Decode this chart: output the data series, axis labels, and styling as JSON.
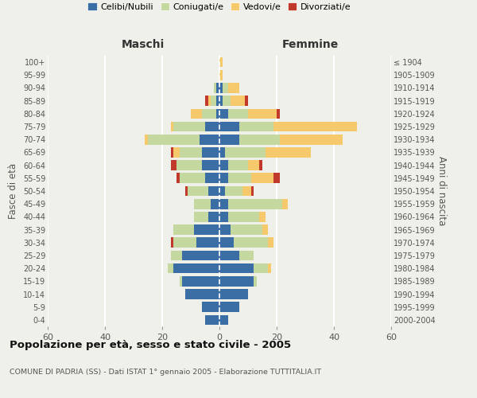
{
  "age_groups": [
    "0-4",
    "5-9",
    "10-14",
    "15-19",
    "20-24",
    "25-29",
    "30-34",
    "35-39",
    "40-44",
    "45-49",
    "50-54",
    "55-59",
    "60-64",
    "65-69",
    "70-74",
    "75-79",
    "80-84",
    "85-89",
    "90-94",
    "95-99",
    "100+"
  ],
  "birth_years": [
    "2000-2004",
    "1995-1999",
    "1990-1994",
    "1985-1989",
    "1980-1984",
    "1975-1979",
    "1970-1974",
    "1965-1969",
    "1960-1964",
    "1955-1959",
    "1950-1954",
    "1945-1949",
    "1940-1944",
    "1935-1939",
    "1930-1934",
    "1925-1929",
    "1920-1924",
    "1915-1919",
    "1910-1914",
    "1905-1909",
    "≤ 1904"
  ],
  "maschi_celibi": [
    5,
    6,
    12,
    13,
    16,
    13,
    8,
    9,
    4,
    3,
    4,
    5,
    6,
    6,
    7,
    5,
    1,
    1,
    1,
    0,
    0
  ],
  "maschi_coniugati": [
    0,
    0,
    0,
    1,
    2,
    4,
    8,
    7,
    5,
    6,
    7,
    9,
    9,
    8,
    18,
    11,
    5,
    2,
    1,
    0,
    0
  ],
  "maschi_vedovi": [
    0,
    0,
    0,
    0,
    0,
    0,
    0,
    0,
    0,
    0,
    0,
    0,
    0,
    2,
    1,
    1,
    4,
    1,
    0,
    0,
    0
  ],
  "maschi_divorziati": [
    0,
    0,
    0,
    0,
    0,
    0,
    1,
    0,
    0,
    0,
    1,
    1,
    2,
    1,
    0,
    0,
    0,
    1,
    0,
    0,
    0
  ],
  "femmine_celibi": [
    3,
    7,
    10,
    12,
    12,
    7,
    5,
    4,
    3,
    3,
    2,
    3,
    3,
    2,
    7,
    7,
    3,
    1,
    1,
    0,
    0
  ],
  "femmine_coniugati": [
    0,
    0,
    0,
    1,
    5,
    5,
    12,
    11,
    11,
    19,
    6,
    8,
    7,
    14,
    14,
    12,
    7,
    3,
    2,
    0,
    0
  ],
  "femmine_vedovi": [
    0,
    0,
    0,
    0,
    1,
    0,
    2,
    2,
    2,
    2,
    3,
    8,
    4,
    16,
    22,
    29,
    10,
    5,
    4,
    1,
    1
  ],
  "femmine_divorziati": [
    0,
    0,
    0,
    0,
    0,
    0,
    0,
    0,
    0,
    0,
    1,
    2,
    1,
    0,
    0,
    0,
    1,
    1,
    0,
    0,
    0
  ],
  "colors": {
    "celibi": "#3a6ea5",
    "coniugati": "#c5d8a0",
    "vedovi": "#f5c96c",
    "divorziati": "#c0392b"
  },
  "xlim": 60,
  "title": "Popolazione per età, sesso e stato civile - 2005",
  "subtitle": "COMUNE DI PADRIA (SS) - Dati ISTAT 1° gennaio 2005 - Elaborazione TUTTITALIA.IT",
  "ylabel_left": "Fasce di età",
  "ylabel_right": "Anni di nascita",
  "xlabel_left": "Maschi",
  "xlabel_right": "Femmine",
  "bg_color": "#f0f0eb",
  "legend_labels": [
    "Celibi/Nubili",
    "Coniugati/e",
    "Vedovi/e",
    "Divorziati/e"
  ]
}
